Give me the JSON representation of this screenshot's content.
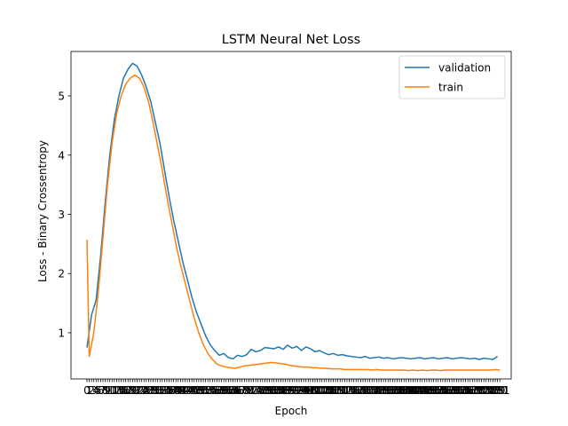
{
  "chart_data": {
    "type": "line",
    "title": "LSTM Neural Net Loss",
    "xlabel": "Epoch",
    "ylabel": "Loss - Binary Crossentropy",
    "xlim": [
      -7,
      186
    ],
    "ylim": [
      0.22,
      5.75
    ],
    "yticks": [
      1,
      2,
      3,
      4,
      5
    ],
    "x_tick_step": 1,
    "grid": false,
    "legend_position": "top-right",
    "series": [
      {
        "name": "validation",
        "color": "#1f77b4",
        "points": [
          [
            0,
            0.75
          ],
          [
            2,
            1.3
          ],
          [
            4,
            1.55
          ],
          [
            6,
            2.3
          ],
          [
            8,
            3.2
          ],
          [
            10,
            4.0
          ],
          [
            12,
            4.6
          ],
          [
            14,
            5.0
          ],
          [
            16,
            5.3
          ],
          [
            18,
            5.45
          ],
          [
            20,
            5.55
          ],
          [
            22,
            5.5
          ],
          [
            24,
            5.35
          ],
          [
            26,
            5.15
          ],
          [
            28,
            4.9
          ],
          [
            30,
            4.55
          ],
          [
            32,
            4.2
          ],
          [
            34,
            3.75
          ],
          [
            36,
            3.3
          ],
          [
            38,
            2.9
          ],
          [
            40,
            2.55
          ],
          [
            42,
            2.2
          ],
          [
            44,
            1.9
          ],
          [
            46,
            1.6
          ],
          [
            48,
            1.35
          ],
          [
            50,
            1.15
          ],
          [
            52,
            0.95
          ],
          [
            54,
            0.8
          ],
          [
            56,
            0.7
          ],
          [
            58,
            0.62
          ],
          [
            60,
            0.65
          ],
          [
            62,
            0.58
          ],
          [
            64,
            0.56
          ],
          [
            66,
            0.62
          ],
          [
            68,
            0.6
          ],
          [
            70,
            0.63
          ],
          [
            72,
            0.72
          ],
          [
            74,
            0.68
          ],
          [
            76,
            0.7
          ],
          [
            78,
            0.75
          ],
          [
            80,
            0.74
          ],
          [
            82,
            0.73
          ],
          [
            84,
            0.76
          ],
          [
            86,
            0.72
          ],
          [
            88,
            0.79
          ],
          [
            90,
            0.74
          ],
          [
            92,
            0.77
          ],
          [
            94,
            0.7
          ],
          [
            96,
            0.76
          ],
          [
            98,
            0.73
          ],
          [
            100,
            0.68
          ],
          [
            102,
            0.7
          ],
          [
            104,
            0.66
          ],
          [
            106,
            0.63
          ],
          [
            108,
            0.65
          ],
          [
            110,
            0.62
          ],
          [
            112,
            0.63
          ],
          [
            114,
            0.61
          ],
          [
            116,
            0.6
          ],
          [
            118,
            0.59
          ],
          [
            120,
            0.58
          ],
          [
            122,
            0.6
          ],
          [
            124,
            0.57
          ],
          [
            126,
            0.58
          ],
          [
            128,
            0.59
          ],
          [
            130,
            0.57
          ],
          [
            132,
            0.58
          ],
          [
            134,
            0.56
          ],
          [
            136,
            0.57
          ],
          [
            138,
            0.58
          ],
          [
            140,
            0.57
          ],
          [
            142,
            0.56
          ],
          [
            144,
            0.57
          ],
          [
            146,
            0.58
          ],
          [
            148,
            0.56
          ],
          [
            150,
            0.57
          ],
          [
            152,
            0.58
          ],
          [
            154,
            0.56
          ],
          [
            156,
            0.57
          ],
          [
            158,
            0.58
          ],
          [
            160,
            0.56
          ],
          [
            162,
            0.57
          ],
          [
            164,
            0.58
          ],
          [
            166,
            0.57
          ],
          [
            168,
            0.56
          ],
          [
            170,
            0.57
          ],
          [
            172,
            0.55
          ],
          [
            174,
            0.57
          ],
          [
            176,
            0.56
          ],
          [
            178,
            0.55
          ],
          [
            180,
            0.6
          ]
        ]
      },
      {
        "name": "train",
        "color": "#ff7f0e",
        "points": [
          [
            0,
            2.57
          ],
          [
            1,
            0.6
          ],
          [
            3,
            1.0
          ],
          [
            5,
            1.7
          ],
          [
            7,
            2.6
          ],
          [
            9,
            3.5
          ],
          [
            11,
            4.2
          ],
          [
            13,
            4.7
          ],
          [
            15,
            5.0
          ],
          [
            17,
            5.2
          ],
          [
            19,
            5.3
          ],
          [
            21,
            5.35
          ],
          [
            23,
            5.3
          ],
          [
            25,
            5.15
          ],
          [
            27,
            4.9
          ],
          [
            29,
            4.55
          ],
          [
            31,
            4.15
          ],
          [
            33,
            3.75
          ],
          [
            35,
            3.3
          ],
          [
            37,
            2.9
          ],
          [
            39,
            2.5
          ],
          [
            41,
            2.15
          ],
          [
            43,
            1.85
          ],
          [
            45,
            1.55
          ],
          [
            47,
            1.25
          ],
          [
            49,
            1.0
          ],
          [
            51,
            0.8
          ],
          [
            53,
            0.65
          ],
          [
            55,
            0.55
          ],
          [
            57,
            0.47
          ],
          [
            59,
            0.44
          ],
          [
            61,
            0.42
          ],
          [
            63,
            0.41
          ],
          [
            65,
            0.4
          ],
          [
            67,
            0.42
          ],
          [
            69,
            0.44
          ],
          [
            71,
            0.45
          ],
          [
            73,
            0.46
          ],
          [
            75,
            0.47
          ],
          [
            77,
            0.48
          ],
          [
            79,
            0.49
          ],
          [
            81,
            0.5
          ],
          [
            83,
            0.49
          ],
          [
            85,
            0.48
          ],
          [
            87,
            0.47
          ],
          [
            89,
            0.45
          ],
          [
            91,
            0.44
          ],
          [
            93,
            0.43
          ],
          [
            95,
            0.42
          ],
          [
            97,
            0.42
          ],
          [
            99,
            0.41
          ],
          [
            101,
            0.41
          ],
          [
            103,
            0.4
          ],
          [
            105,
            0.4
          ],
          [
            107,
            0.39
          ],
          [
            109,
            0.39
          ],
          [
            111,
            0.39
          ],
          [
            113,
            0.38
          ],
          [
            115,
            0.38
          ],
          [
            117,
            0.38
          ],
          [
            119,
            0.38
          ],
          [
            121,
            0.38
          ],
          [
            123,
            0.38
          ],
          [
            125,
            0.37
          ],
          [
            127,
            0.38
          ],
          [
            129,
            0.37
          ],
          [
            131,
            0.37
          ],
          [
            133,
            0.37
          ],
          [
            135,
            0.37
          ],
          [
            137,
            0.37
          ],
          [
            139,
            0.37
          ],
          [
            141,
            0.36
          ],
          [
            143,
            0.37
          ],
          [
            145,
            0.36
          ],
          [
            147,
            0.37
          ],
          [
            149,
            0.36
          ],
          [
            151,
            0.37
          ],
          [
            153,
            0.37
          ],
          [
            155,
            0.36
          ],
          [
            157,
            0.37
          ],
          [
            159,
            0.37
          ],
          [
            161,
            0.37
          ],
          [
            163,
            0.37
          ],
          [
            165,
            0.37
          ],
          [
            167,
            0.37
          ],
          [
            169,
            0.37
          ],
          [
            171,
            0.37
          ],
          [
            173,
            0.37
          ],
          [
            175,
            0.37
          ],
          [
            177,
            0.37
          ],
          [
            179,
            0.38
          ],
          [
            181,
            0.37
          ]
        ]
      }
    ]
  }
}
